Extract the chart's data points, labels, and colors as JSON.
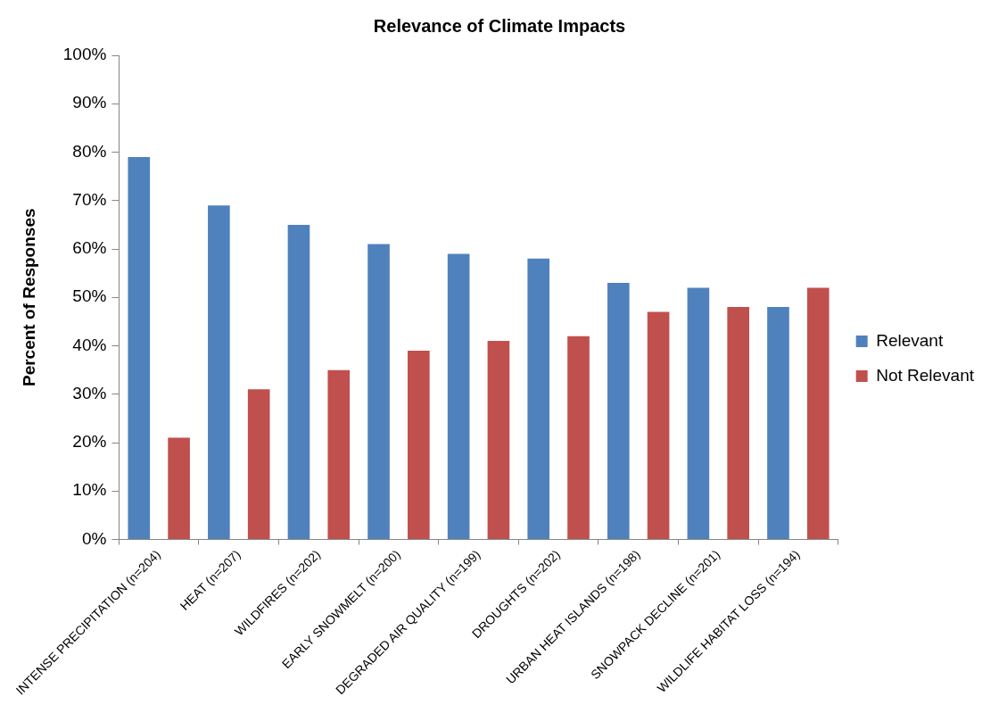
{
  "chart_data": {
    "type": "bar",
    "title": "Relevance of Climate Impacts",
    "ylabel": "Percent of Responses",
    "categories": [
      "INTENSE PRECIPITATION (n=204)",
      "HEAT (n=207)",
      "WILDFIRES (n=202)",
      "EARLY SNOWMELT (n=200)",
      "DEGRADED AIR QUALITY (n=199)",
      "DROUGHTS (n=202)",
      "URBAN HEAT ISLANDS (n=198)",
      "SNOWPACK DECLINE (n=201)",
      "WILDLIFE HABITAT LOSS (n=194)"
    ],
    "series": [
      {
        "name": "Relevant",
        "color": "#4f81bd",
        "values": [
          79,
          69,
          65,
          61,
          59,
          58,
          53,
          52,
          48
        ]
      },
      {
        "name": "Not Relevant",
        "color": "#c0504d",
        "values": [
          21,
          31,
          35,
          39,
          41,
          42,
          47,
          48,
          52
        ]
      }
    ],
    "ylim": [
      0,
      100
    ],
    "yticks": [
      {
        "value": 0,
        "label": "0%"
      },
      {
        "value": 10,
        "label": "10%"
      },
      {
        "value": 20,
        "label": "20%"
      },
      {
        "value": 30,
        "label": "30%"
      },
      {
        "value": 40,
        "label": "40%"
      },
      {
        "value": 50,
        "label": "50%"
      },
      {
        "value": 60,
        "label": "60%"
      },
      {
        "value": 70,
        "label": "70%"
      },
      {
        "value": 80,
        "label": "80%"
      },
      {
        "value": 90,
        "label": "90%"
      },
      {
        "value": 100,
        "label": "100%"
      }
    ],
    "grid": false,
    "legend": "right"
  }
}
